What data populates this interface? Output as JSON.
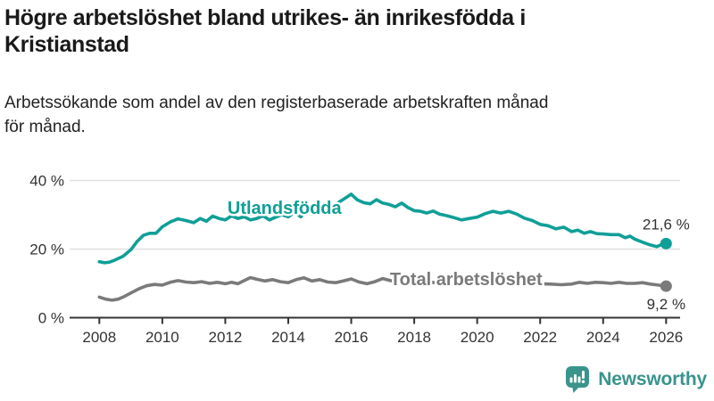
{
  "header": {
    "title_line1": "Högre arbetslöshet bland utrikes- än inrikesfödda i",
    "title_line2": "Kristianstad",
    "subtitle_line1": "Arbetssökande som andel av den registerbaserade arbetskraften månad",
    "subtitle_line2": "för månad."
  },
  "branding": {
    "logo_text": "Newsworthy",
    "logo_icon": "bar-chart-speech-bubble-icon",
    "logo_color": "#3a948c"
  },
  "colors": {
    "foreign_born_line": "#0f9f97",
    "total_line": "#7a7a7a",
    "axis": "#333333",
    "gridline": "#e0e0e0",
    "title_text": "#1a1a1a"
  },
  "chart_data": {
    "type": "line",
    "title": "Högre arbetslöshet bland utrikes- än inrikesfödda i Kristianstad",
    "subtitle": "Arbetssökande som andel av den registerbaserade arbetskraften månad för månad.",
    "grid": true,
    "legend_position": "inline-labels",
    "x_axis": {
      "range": [
        2007.7,
        2026.5
      ],
      "ticks": [
        2008,
        2010,
        2012,
        2014,
        2016,
        2018,
        2020,
        2022,
        2024,
        2026
      ],
      "labels": [
        "2008",
        "2010",
        "2012",
        "2014",
        "2016",
        "2018",
        "2020",
        "2022",
        "2024",
        "2026"
      ]
    },
    "y_axis": {
      "range": [
        0,
        44
      ],
      "ticks": [
        0,
        20,
        40
      ],
      "labels": [
        "0 %",
        "20 %",
        "40 %"
      ],
      "unit": "%"
    },
    "series": [
      {
        "id": "utlandsfodda",
        "name": "Utlandsfödda",
        "color": "#0f9f97",
        "end_label": "21,6 %",
        "end_value": 21.6,
        "value_label_dy": -16,
        "label_at": [
          2012.07,
          30.3
        ],
        "points": [
          [
            2008.0,
            16.3
          ],
          [
            2008.17,
            16.0
          ],
          [
            2008.33,
            16.2
          ],
          [
            2008.5,
            16.8
          ],
          [
            2008.75,
            17.9
          ],
          [
            2009.0,
            19.8
          ],
          [
            2009.2,
            22.2
          ],
          [
            2009.4,
            24.0
          ],
          [
            2009.6,
            24.6
          ],
          [
            2009.8,
            24.6
          ],
          [
            2010.0,
            26.5
          ],
          [
            2010.25,
            27.9
          ],
          [
            2010.5,
            28.8
          ],
          [
            2010.75,
            28.3
          ],
          [
            2011.0,
            27.7
          ],
          [
            2011.2,
            28.9
          ],
          [
            2011.4,
            28.1
          ],
          [
            2011.6,
            29.6
          ],
          [
            2011.8,
            28.9
          ],
          [
            2012.0,
            28.5
          ],
          [
            2012.2,
            29.7
          ],
          [
            2012.4,
            28.9
          ],
          [
            2012.6,
            29.4
          ],
          [
            2012.8,
            28.5
          ],
          [
            2013.0,
            28.9
          ],
          [
            2013.2,
            29.7
          ],
          [
            2013.4,
            28.5
          ],
          [
            2013.6,
            29.3
          ],
          [
            2013.8,
            30.0
          ],
          [
            2014.0,
            29.4
          ],
          [
            2014.2,
            30.7
          ],
          [
            2014.4,
            29.4
          ],
          [
            2014.6,
            31.4
          ],
          [
            2014.8,
            31.0
          ],
          [
            2015.0,
            32.2
          ],
          [
            2015.25,
            31.9
          ],
          [
            2015.5,
            33.0
          ],
          [
            2015.75,
            34.5
          ],
          [
            2016.0,
            36.0
          ],
          [
            2016.2,
            34.3
          ],
          [
            2016.4,
            33.5
          ],
          [
            2016.6,
            33.2
          ],
          [
            2016.8,
            34.4
          ],
          [
            2017.0,
            33.4
          ],
          [
            2017.2,
            33.0
          ],
          [
            2017.4,
            32.3
          ],
          [
            2017.6,
            33.4
          ],
          [
            2017.8,
            32.1
          ],
          [
            2018.0,
            31.2
          ],
          [
            2018.2,
            31.0
          ],
          [
            2018.4,
            30.5
          ],
          [
            2018.6,
            31.1
          ],
          [
            2018.8,
            30.2
          ],
          [
            2019.0,
            29.8
          ],
          [
            2019.25,
            29.2
          ],
          [
            2019.5,
            28.5
          ],
          [
            2019.75,
            28.9
          ],
          [
            2020.0,
            29.3
          ],
          [
            2020.25,
            30.3
          ],
          [
            2020.5,
            31.0
          ],
          [
            2020.75,
            30.5
          ],
          [
            2021.0,
            31.0
          ],
          [
            2021.25,
            30.2
          ],
          [
            2021.5,
            29.0
          ],
          [
            2021.75,
            28.3
          ],
          [
            2022.0,
            27.2
          ],
          [
            2022.25,
            26.8
          ],
          [
            2022.5,
            25.9
          ],
          [
            2022.75,
            26.4
          ],
          [
            2023.0,
            25.1
          ],
          [
            2023.2,
            25.5
          ],
          [
            2023.4,
            24.6
          ],
          [
            2023.6,
            25.1
          ],
          [
            2023.8,
            24.5
          ],
          [
            2024.0,
            24.4
          ],
          [
            2024.25,
            24.2
          ],
          [
            2024.5,
            24.2
          ],
          [
            2024.7,
            23.3
          ],
          [
            2024.85,
            23.8
          ],
          [
            2025.0,
            22.9
          ],
          [
            2025.25,
            22.0
          ],
          [
            2025.5,
            21.2
          ],
          [
            2025.7,
            20.7
          ],
          [
            2025.85,
            21.3
          ],
          [
            2026.0,
            21.6
          ]
        ]
      },
      {
        "id": "total",
        "name": "Total arbetslöshet",
        "color": "#7a7a7a",
        "end_label": "9,2 %",
        "end_value": 9.2,
        "value_label_dy": 26,
        "label_at": [
          2017.23,
          9.5
        ],
        "points": [
          [
            2008.0,
            6.0
          ],
          [
            2008.2,
            5.4
          ],
          [
            2008.4,
            5.1
          ],
          [
            2008.6,
            5.4
          ],
          [
            2008.8,
            6.2
          ],
          [
            2009.0,
            7.2
          ],
          [
            2009.25,
            8.4
          ],
          [
            2009.5,
            9.3
          ],
          [
            2009.75,
            9.7
          ],
          [
            2010.0,
            9.5
          ],
          [
            2010.25,
            10.3
          ],
          [
            2010.5,
            10.8
          ],
          [
            2010.75,
            10.4
          ],
          [
            2011.0,
            10.2
          ],
          [
            2011.25,
            10.5
          ],
          [
            2011.5,
            10.0
          ],
          [
            2011.75,
            10.3
          ],
          [
            2012.0,
            9.9
          ],
          [
            2012.2,
            10.3
          ],
          [
            2012.4,
            9.9
          ],
          [
            2012.6,
            10.8
          ],
          [
            2012.8,
            11.7
          ],
          [
            2013.0,
            11.2
          ],
          [
            2013.25,
            10.7
          ],
          [
            2013.5,
            11.1
          ],
          [
            2013.75,
            10.5
          ],
          [
            2014.0,
            10.2
          ],
          [
            2014.25,
            11.1
          ],
          [
            2014.5,
            11.6
          ],
          [
            2014.75,
            10.7
          ],
          [
            2015.0,
            11.1
          ],
          [
            2015.25,
            10.4
          ],
          [
            2015.5,
            10.2
          ],
          [
            2015.75,
            10.7
          ],
          [
            2016.0,
            11.3
          ],
          [
            2016.25,
            10.4
          ],
          [
            2016.5,
            9.9
          ],
          [
            2016.75,
            10.5
          ],
          [
            2017.0,
            11.4
          ],
          [
            2017.25,
            10.8
          ],
          [
            2017.5,
            10.6
          ],
          [
            2017.75,
            10.4
          ],
          [
            2018.0,
            10.3
          ],
          [
            2018.33,
            10.5
          ],
          [
            2018.67,
            10.2
          ],
          [
            2019.0,
            10.1
          ],
          [
            2019.33,
            9.9
          ],
          [
            2019.67,
            10.0
          ],
          [
            2020.0,
            10.6
          ],
          [
            2020.3,
            11.6
          ],
          [
            2020.6,
            11.3
          ],
          [
            2020.85,
            11.1
          ],
          [
            2021.0,
            11.0
          ],
          [
            2021.33,
            10.6
          ],
          [
            2021.67,
            10.2
          ],
          [
            2022.0,
            9.9
          ],
          [
            2022.33,
            9.8
          ],
          [
            2022.67,
            9.6
          ],
          [
            2023.0,
            9.8
          ],
          [
            2023.25,
            10.3
          ],
          [
            2023.5,
            10.0
          ],
          [
            2023.75,
            10.3
          ],
          [
            2024.0,
            10.2
          ],
          [
            2024.25,
            10.0
          ],
          [
            2024.5,
            10.3
          ],
          [
            2024.75,
            10.0
          ],
          [
            2025.0,
            10.0
          ],
          [
            2025.25,
            10.2
          ],
          [
            2025.5,
            9.8
          ],
          [
            2025.75,
            9.5
          ],
          [
            2026.0,
            9.2
          ]
        ]
      }
    ]
  }
}
